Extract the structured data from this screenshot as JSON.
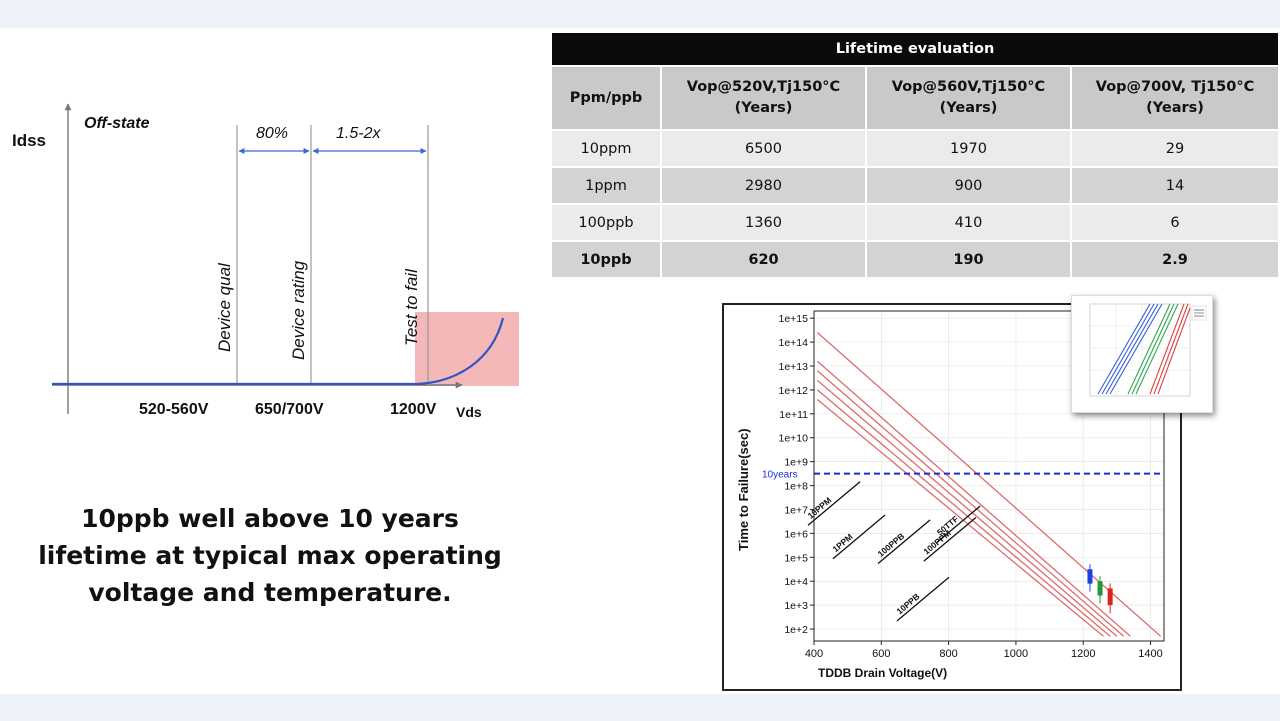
{
  "diagram": {
    "y_axis_label": "Idss",
    "x_axis_label": "Vds",
    "state_label": "Off-state",
    "margin_labels": {
      "first": "80%",
      "second": "1.5-2x"
    },
    "markers": [
      {
        "label": "Device qual",
        "voltage": "520-560V"
      },
      {
        "label": "Device rating",
        "voltage": "650/700V"
      },
      {
        "label": "Test to fail",
        "voltage": "1200V"
      }
    ],
    "colors": {
      "axis": "#777777",
      "curve": "#2f55c4",
      "arrow": "#3b66d6",
      "fail_zone": "#f5b8b8"
    }
  },
  "statement": [
    "10ppb well above 10 years",
    "lifetime at typical max operating",
    "voltage and temperature."
  ],
  "lifetime_table": {
    "title": "Lifetime evaluation",
    "headers": [
      [
        "Ppm/ppb"
      ],
      [
        "Vop@520V,Tj150°C",
        "(Years)"
      ],
      [
        "Vop@560V,Tj150°C",
        "(Years)"
      ],
      [
        "Vop@700V, Tj150°C",
        "(Years)"
      ]
    ],
    "rows": [
      [
        "10ppm",
        "6500",
        "1970",
        "29"
      ],
      [
        "1ppm",
        "2980",
        "900",
        "14"
      ],
      [
        "100ppb",
        "1360",
        "410",
        "6"
      ],
      [
        "10ppb",
        "620",
        "190",
        "2.9"
      ]
    ]
  },
  "chart_data": {
    "type": "line",
    "xlabel": "TDDB Drain Voltage(V)",
    "ylabel": "Time to Failure(sec)",
    "xlim": [
      400,
      1440
    ],
    "ylim_exponent": [
      1.5,
      15.3
    ],
    "y_scale": "log",
    "x_ticks": [
      "400",
      "600",
      "800",
      "1000",
      "1200",
      "1400"
    ],
    "y_ticks": [
      "1e+2",
      "1e+3",
      "1e+4",
      "1e+5",
      "1e+6",
      "1e+7",
      "1e+8",
      "1e+9",
      "1e+10",
      "1e+11",
      "1e+12",
      "1e+13",
      "1e+14",
      "1e+15"
    ],
    "reference_line": {
      "label": "10years",
      "y_exponent": 8.5,
      "color": "#1a2fe0"
    },
    "series": [
      {
        "name": "50TTF",
        "x": [
          410,
          1430
        ],
        "y_exponent": [
          14.4,
          1.7
        ]
      },
      {
        "name": "10PPM",
        "x": [
          410,
          1340
        ],
        "y_exponent": [
          13.2,
          1.7
        ]
      },
      {
        "name": "1PPM",
        "x": [
          410,
          1320
        ],
        "y_exponent": [
          12.8,
          1.7
        ]
      },
      {
        "name": "100PPM",
        "x": [
          410,
          1300
        ],
        "y_exponent": [
          12.4,
          1.7
        ]
      },
      {
        "name": "100PPB",
        "x": [
          410,
          1280
        ],
        "y_exponent": [
          12.0,
          1.7
        ]
      },
      {
        "name": "10PPB",
        "x": [
          410,
          1260
        ],
        "y_exponent": [
          11.6,
          1.7
        ]
      }
    ],
    "line_color": "#e06a6a",
    "data_boxes": [
      {
        "x": 1220,
        "low": 3.9,
        "high": 4.5,
        "color": "#1f3fe0"
      },
      {
        "x": 1250,
        "low": 3.4,
        "high": 4.0,
        "color": "#1f9a3a"
      },
      {
        "x": 1280,
        "low": 3.0,
        "high": 3.7,
        "color": "#e01f1f"
      }
    ]
  }
}
